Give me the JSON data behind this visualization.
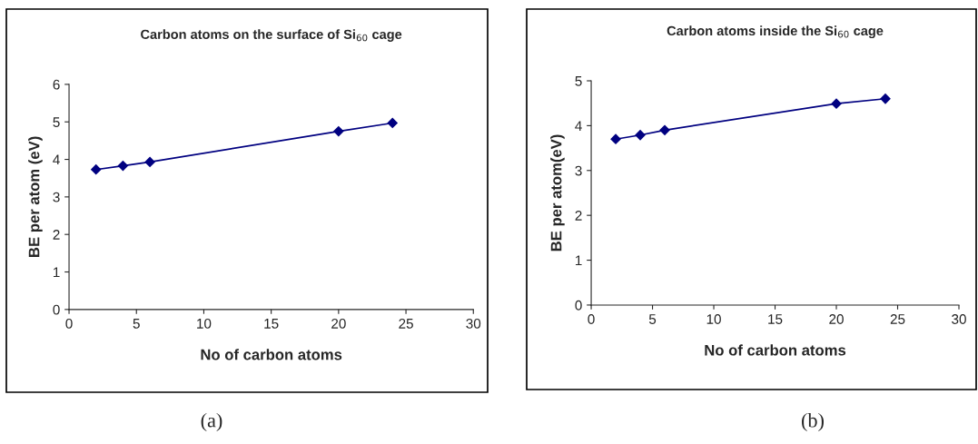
{
  "chart_data": [
    {
      "type": "line",
      "title": "Carbon atoms on the surface of Si$_{60}$ cage",
      "xlabel": "No of carbon atoms",
      "ylabel": "BE per atom (eV)",
      "x": [
        2,
        4,
        6,
        20,
        24
      ],
      "series": [
        {
          "color": "#000080",
          "values": [
            3.73,
            3.83,
            3.93,
            4.75,
            4.97
          ]
        }
      ],
      "xlim": [
        0,
        30
      ],
      "xticks": [
        0,
        5,
        10,
        15,
        20,
        25,
        30
      ],
      "ylim": [
        0,
        6
      ],
      "yticks": [
        0,
        1,
        2,
        3,
        4,
        5,
        6
      ],
      "marker": "diamond",
      "line_style": "solid",
      "grid": false,
      "legend": false,
      "annotations": [
        "(a)"
      ]
    },
    {
      "type": "line",
      "title": "Carbon atoms inside the Si$_{60}$ cage",
      "xlabel": "No of carbon atoms",
      "ylabel": "BE per atom(eV)",
      "x": [
        2,
        4,
        6,
        20,
        24
      ],
      "series": [
        {
          "color": "#000080",
          "values": [
            3.7,
            3.79,
            3.9,
            4.49,
            4.6
          ]
        }
      ],
      "xlim": [
        0,
        30
      ],
      "xticks": [
        0,
        5,
        10,
        15,
        20,
        25,
        30
      ],
      "ylim": [
        0,
        5
      ],
      "yticks": [
        0,
        1,
        2,
        3,
        4,
        5
      ],
      "marker": "diamond",
      "line_style": "solid",
      "grid": false,
      "legend": false,
      "annotations": [
        "(b)"
      ]
    }
  ]
}
